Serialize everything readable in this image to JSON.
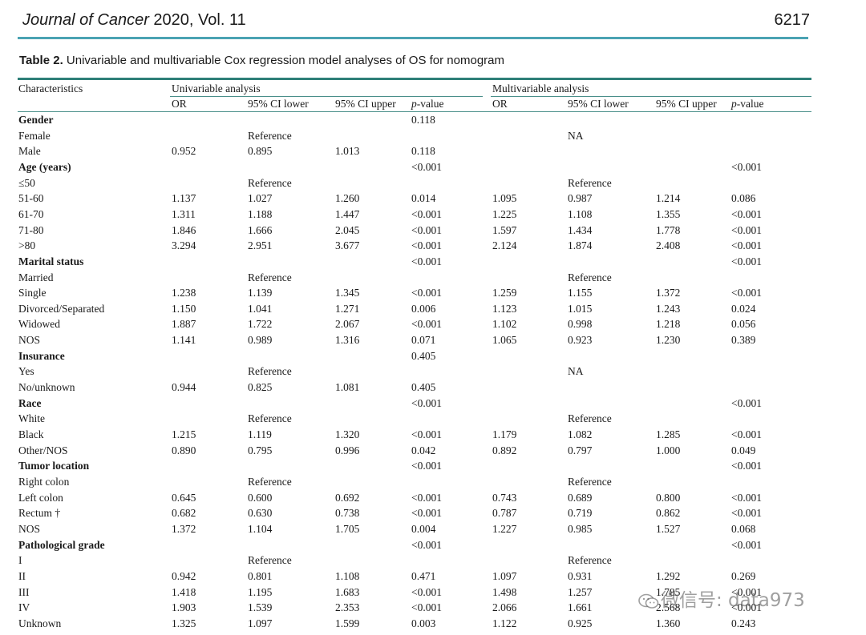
{
  "header": {
    "journal_name_italic": "Journal of Cancer",
    "journal_volume": " 2020, Vol. 11",
    "page_number": "6217"
  },
  "caption": {
    "label": "Table 2.",
    "text": " Univariable and multivariable Cox regression model analyses of OS for nomogram"
  },
  "table": {
    "char_header": "Characteristics",
    "uni_header": "Univariable analysis",
    "multi_header": "Multivariable analysis",
    "sub_headers": [
      "OR",
      "95% CI lower",
      "95% CI upper",
      "p-value",
      "OR",
      "95% CI lower",
      "95% CI upper",
      "p-value"
    ],
    "rows": [
      {
        "label": "Gender",
        "bold": true,
        "cells": [
          "",
          "",
          "",
          "0.118",
          "",
          "",
          "",
          ""
        ]
      },
      {
        "label": "Female",
        "bold": false,
        "cells": [
          "",
          "Reference",
          "",
          "",
          "",
          "NA",
          "",
          ""
        ]
      },
      {
        "label": "Male",
        "bold": false,
        "cells": [
          "0.952",
          "0.895",
          "1.013",
          "0.118",
          "",
          "",
          "",
          ""
        ]
      },
      {
        "label": "Age (years)",
        "bold": true,
        "cells": [
          "",
          "",
          "",
          "<0.001",
          "",
          "",
          "",
          "<0.001"
        ]
      },
      {
        "label": "≤50",
        "bold": false,
        "cells": [
          "",
          "Reference",
          "",
          "",
          "",
          "Reference",
          "",
          ""
        ]
      },
      {
        "label": "51-60",
        "bold": false,
        "cells": [
          "1.137",
          "1.027",
          "1.260",
          "0.014",
          "1.095",
          "0.987",
          "1.214",
          "0.086"
        ]
      },
      {
        "label": "61-70",
        "bold": false,
        "cells": [
          "1.311",
          "1.188",
          "1.447",
          "<0.001",
          "1.225",
          "1.108",
          "1.355",
          "<0.001"
        ]
      },
      {
        "label": "71-80",
        "bold": false,
        "cells": [
          "1.846",
          "1.666",
          "2.045",
          "<0.001",
          "1.597",
          "1.434",
          "1.778",
          "<0.001"
        ]
      },
      {
        "label": ">80",
        "bold": false,
        "cells": [
          "3.294",
          "2.951",
          "3.677",
          "<0.001",
          "2.124",
          "1.874",
          "2.408",
          "<0.001"
        ]
      },
      {
        "label": "Marital status",
        "bold": true,
        "cells": [
          "",
          "",
          "",
          "<0.001",
          "",
          "",
          "",
          "<0.001"
        ]
      },
      {
        "label": "Married",
        "bold": false,
        "cells": [
          "",
          "Reference",
          "",
          "",
          "",
          "Reference",
          "",
          ""
        ]
      },
      {
        "label": "Single",
        "bold": false,
        "cells": [
          "1.238",
          "1.139",
          "1.345",
          "<0.001",
          "1.259",
          "1.155",
          "1.372",
          "<0.001"
        ]
      },
      {
        "label": "Divorced/Separated",
        "bold": false,
        "cells": [
          "1.150",
          "1.041",
          "1.271",
          "0.006",
          "1.123",
          "1.015",
          "1.243",
          "0.024"
        ]
      },
      {
        "label": "Widowed",
        "bold": false,
        "cells": [
          "1.887",
          "1.722",
          "2.067",
          "<0.001",
          "1.102",
          "0.998",
          "1.218",
          "0.056"
        ]
      },
      {
        "label": "NOS",
        "bold": false,
        "cells": [
          "1.141",
          "0.989",
          "1.316",
          "0.071",
          "1.065",
          "0.923",
          "1.230",
          "0.389"
        ]
      },
      {
        "label": "Insurance",
        "bold": true,
        "cells": [
          "",
          "",
          "",
          "0.405",
          "",
          "",
          "",
          ""
        ]
      },
      {
        "label": "Yes",
        "bold": false,
        "cells": [
          "",
          "Reference",
          "",
          "",
          "",
          "NA",
          "",
          ""
        ]
      },
      {
        "label": "No/unknown",
        "bold": false,
        "cells": [
          "0.944",
          "0.825",
          "1.081",
          "0.405",
          "",
          "",
          "",
          ""
        ]
      },
      {
        "label": "Race",
        "bold": true,
        "cells": [
          "",
          "",
          "",
          "<0.001",
          "",
          "",
          "",
          "<0.001"
        ]
      },
      {
        "label": "White",
        "bold": false,
        "cells": [
          "",
          "Reference",
          "",
          "",
          "",
          "Reference",
          "",
          ""
        ]
      },
      {
        "label": "Black",
        "bold": false,
        "cells": [
          "1.215",
          "1.119",
          "1.320",
          "<0.001",
          "1.179",
          "1.082",
          "1.285",
          "<0.001"
        ]
      },
      {
        "label": "Other/NOS",
        "bold": false,
        "cells": [
          "0.890",
          "0.795",
          "0.996",
          "0.042",
          "0.892",
          "0.797",
          "1.000",
          "0.049"
        ]
      },
      {
        "label": "Tumor location",
        "bold": true,
        "cells": [
          "",
          "",
          "",
          "<0.001",
          "",
          "",
          "",
          "<0.001"
        ]
      },
      {
        "label": "Right colon",
        "bold": false,
        "cells": [
          "",
          "Reference",
          "",
          "",
          "",
          "Reference",
          "",
          ""
        ]
      },
      {
        "label": "Left colon",
        "bold": false,
        "cells": [
          "0.645",
          "0.600",
          "0.692",
          "<0.001",
          "0.743",
          "0.689",
          "0.800",
          "<0.001"
        ]
      },
      {
        "label": "Rectum †",
        "bold": false,
        "cells": [
          "0.682",
          "0.630",
          "0.738",
          "<0.001",
          "0.787",
          "0.719",
          "0.862",
          "<0.001"
        ]
      },
      {
        "label": "NOS",
        "bold": false,
        "cells": [
          "1.372",
          "1.104",
          "1.705",
          "0.004",
          "1.227",
          "0.985",
          "1.527",
          "0.068"
        ]
      },
      {
        "label": "Pathological grade",
        "bold": true,
        "cells": [
          "",
          "",
          "",
          "<0.001",
          "",
          "",
          "",
          "<0.001"
        ]
      },
      {
        "label": "I",
        "bold": false,
        "cells": [
          "",
          "Reference",
          "",
          "",
          "",
          "Reference",
          "",
          ""
        ]
      },
      {
        "label": "II",
        "bold": false,
        "cells": [
          "0.942",
          "0.801",
          "1.108",
          "0.471",
          "1.097",
          "0.931",
          "1.292",
          "0.269"
        ]
      },
      {
        "label": "III",
        "bold": false,
        "cells": [
          "1.418",
          "1.195",
          "1.683",
          "<0.001",
          "1.498",
          "1.257",
          "1.785",
          "<0.001"
        ]
      },
      {
        "label": "IV",
        "bold": false,
        "cells": [
          "1.903",
          "1.539",
          "2.353",
          "<0.001",
          "2.066",
          "1.661",
          "2.568",
          "<0.001"
        ]
      },
      {
        "label": "Unknown",
        "bold": false,
        "cells": [
          "1.325",
          "1.097",
          "1.599",
          "0.003",
          "1.122",
          "0.925",
          "1.360",
          "0.243"
        ]
      }
    ]
  },
  "watermark": {
    "text": "微信号: data973"
  }
}
